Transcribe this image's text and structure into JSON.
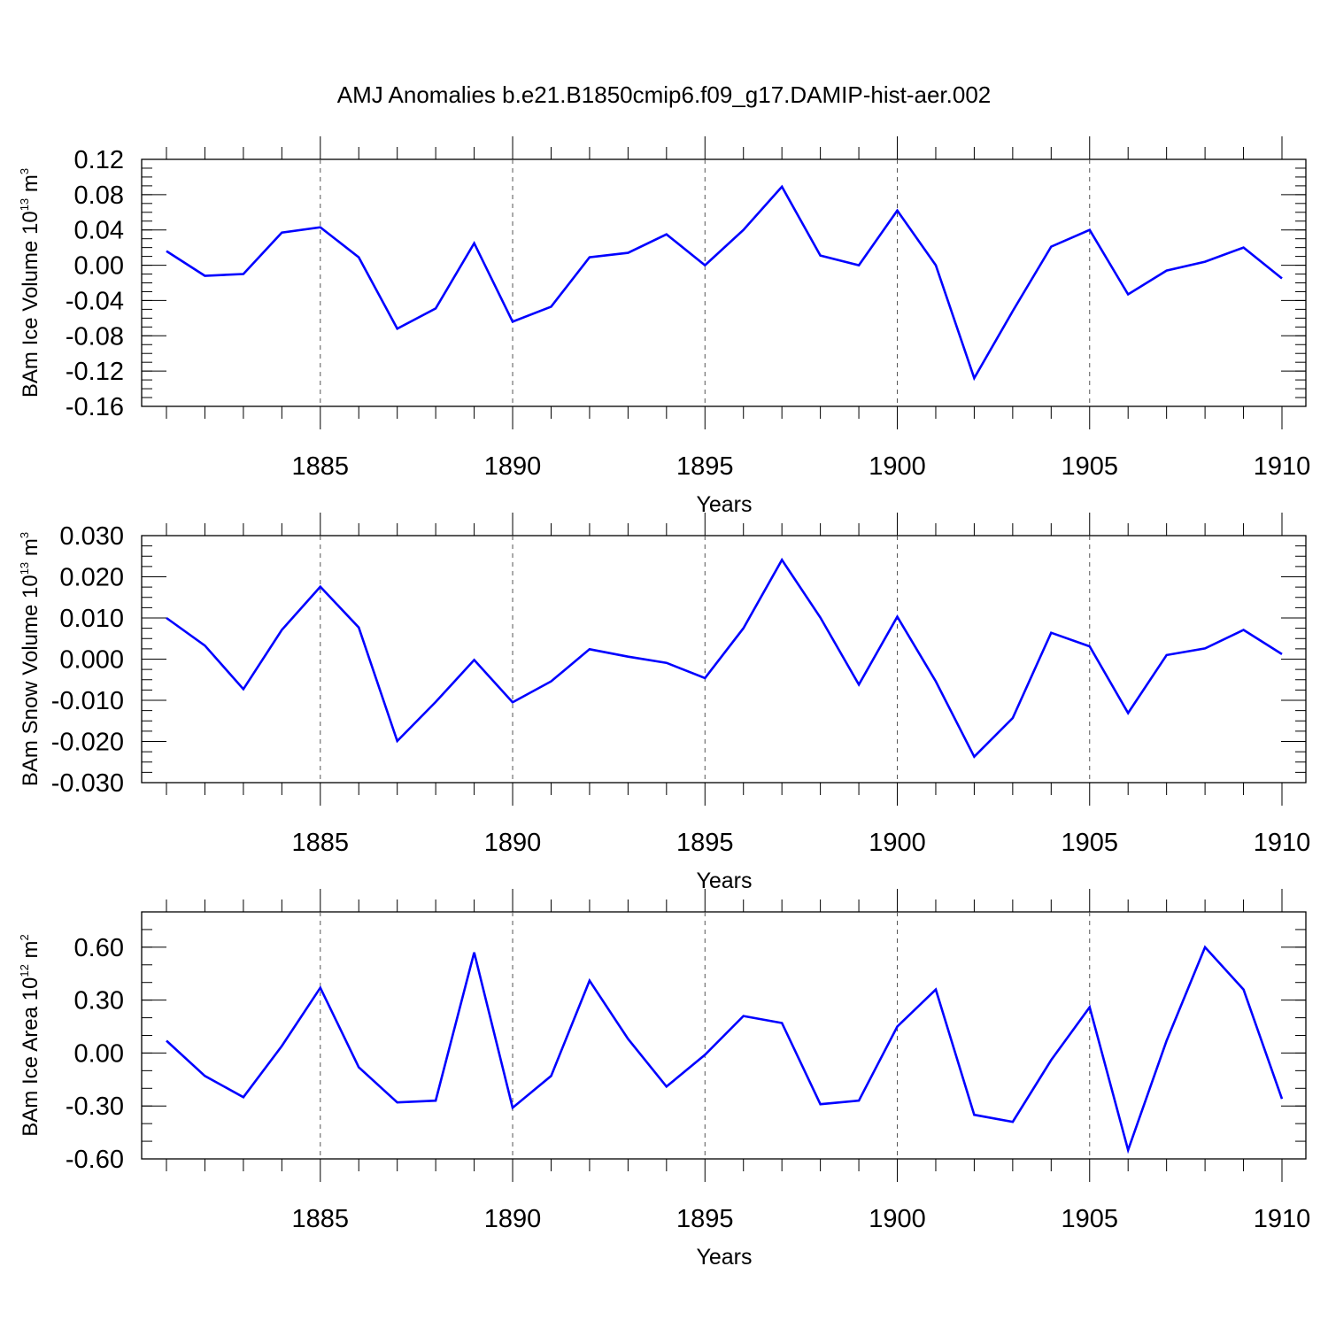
{
  "title": "AMJ Anomalies b.e21.B1850cmip6.f09_g17.DAMIP-hist-aer.002",
  "colors": {
    "line": "#0000ff",
    "axis": "#000000",
    "grid": "#555555"
  },
  "chart_data": [
    {
      "type": "line",
      "name": "ice-volume",
      "ylabel_main": "BAm Ice Volume 10",
      "ylabel_exp": "13",
      "ylabel_unit": " m",
      "ylabel_unit_exp": "3",
      "xlabel": "Years",
      "xlim": [
        1881,
        1910
      ],
      "ylim": [
        -0.16,
        0.12
      ],
      "yticks": [
        -0.16,
        -0.12,
        -0.08,
        -0.04,
        0.0,
        0.04,
        0.08,
        0.12
      ],
      "ytick_labels": [
        "-0.16",
        "-0.12",
        "-0.08",
        "-0.04",
        "0.00",
        "0.04",
        "0.08",
        "0.12"
      ],
      "y_minor_step": 0.01,
      "xticks": [
        1885,
        1890,
        1895,
        1900,
        1905,
        1910
      ],
      "xtick_labels": [
        "1885",
        "1890",
        "1895",
        "1900",
        "1905",
        "1910"
      ],
      "grid_x": [
        1885,
        1890,
        1895,
        1900,
        1905
      ],
      "x": [
        1881,
        1882,
        1883,
        1884,
        1885,
        1886,
        1887,
        1888,
        1889,
        1890,
        1891,
        1892,
        1893,
        1894,
        1895,
        1896,
        1897,
        1898,
        1899,
        1900,
        1901,
        1902,
        1903,
        1904,
        1905,
        1906,
        1907,
        1908,
        1909,
        1910
      ],
      "values": [
        0.016,
        -0.012,
        -0.01,
        0.037,
        0.043,
        0.009,
        -0.072,
        -0.049,
        0.025,
        -0.064,
        -0.047,
        0.009,
        0.014,
        0.035,
        0.0,
        0.04,
        0.089,
        0.011,
        0.0,
        0.062,
        0.0,
        -0.128,
        -0.052,
        0.021,
        0.04,
        -0.033,
        -0.006,
        0.004,
        0.02,
        -0.015
      ]
    },
    {
      "type": "line",
      "name": "snow-volume",
      "ylabel_main": "BAm Snow Volume 10",
      "ylabel_exp": "13",
      "ylabel_unit": " m",
      "ylabel_unit_exp": "3",
      "xlabel": "Years",
      "xlim": [
        1881,
        1910
      ],
      "ylim": [
        -0.03,
        0.03
      ],
      "yticks": [
        -0.03,
        -0.02,
        -0.01,
        0.0,
        0.01,
        0.02,
        0.03
      ],
      "ytick_labels": [
        "-0.030",
        "-0.020",
        "-0.010",
        "0.000",
        "0.010",
        "0.020",
        "0.030"
      ],
      "y_minor_step": 0.0025,
      "xticks": [
        1885,
        1890,
        1895,
        1900,
        1905,
        1910
      ],
      "xtick_labels": [
        "1885",
        "1890",
        "1895",
        "1900",
        "1905",
        "1910"
      ],
      "grid_x": [
        1885,
        1890,
        1895,
        1900,
        1905
      ],
      "x": [
        1881,
        1882,
        1883,
        1884,
        1885,
        1886,
        1887,
        1888,
        1889,
        1890,
        1891,
        1892,
        1893,
        1894,
        1895,
        1896,
        1897,
        1898,
        1899,
        1900,
        1901,
        1902,
        1903,
        1904,
        1905,
        1906,
        1907,
        1908,
        1909,
        1910
      ],
      "values": [
        0.01,
        0.0033,
        -0.0073,
        0.0071,
        0.0176,
        0.0077,
        -0.0199,
        -0.0104,
        -0.0002,
        -0.0105,
        -0.0054,
        0.0024,
        0.0006,
        -0.0009,
        -0.0046,
        0.0075,
        0.0241,
        0.0101,
        -0.0062,
        0.0103,
        -0.0054,
        -0.0237,
        -0.0143,
        0.0064,
        0.0031,
        -0.0131,
        0.001,
        0.0026,
        0.0071,
        0.0012
      ]
    },
    {
      "type": "line",
      "name": "ice-area",
      "ylabel_main": "BAm Ice Area 10",
      "ylabel_exp": "12",
      "ylabel_unit": " m",
      "ylabel_unit_exp": "2",
      "xlabel": "Years",
      "xlim": [
        1881,
        1910
      ],
      "ylim": [
        -0.6,
        0.8
      ],
      "yticks": [
        -0.6,
        -0.3,
        0.0,
        0.3,
        0.6
      ],
      "ytick_labels": [
        "-0.60",
        "-0.30",
        "0.00",
        "0.30",
        "0.60"
      ],
      "y_minor_step": 0.1,
      "xticks": [
        1885,
        1890,
        1895,
        1900,
        1905,
        1910
      ],
      "xtick_labels": [
        "1885",
        "1890",
        "1895",
        "1900",
        "1905",
        "1910"
      ],
      "grid_x": [
        1885,
        1890,
        1895,
        1900,
        1905
      ],
      "x": [
        1881,
        1882,
        1883,
        1884,
        1885,
        1886,
        1887,
        1888,
        1889,
        1890,
        1891,
        1892,
        1893,
        1894,
        1895,
        1896,
        1897,
        1898,
        1899,
        1900,
        1901,
        1902,
        1903,
        1904,
        1905,
        1906,
        1907,
        1908,
        1909,
        1910
      ],
      "values": [
        0.07,
        -0.13,
        -0.25,
        0.04,
        0.37,
        -0.08,
        -0.28,
        -0.27,
        0.57,
        -0.31,
        -0.13,
        0.41,
        0.08,
        -0.19,
        -0.01,
        0.21,
        0.17,
        -0.29,
        -0.27,
        0.15,
        0.36,
        -0.35,
        -0.39,
        -0.04,
        0.26,
        -0.55,
        0.07,
        0.6,
        0.36,
        -0.26
      ]
    }
  ]
}
